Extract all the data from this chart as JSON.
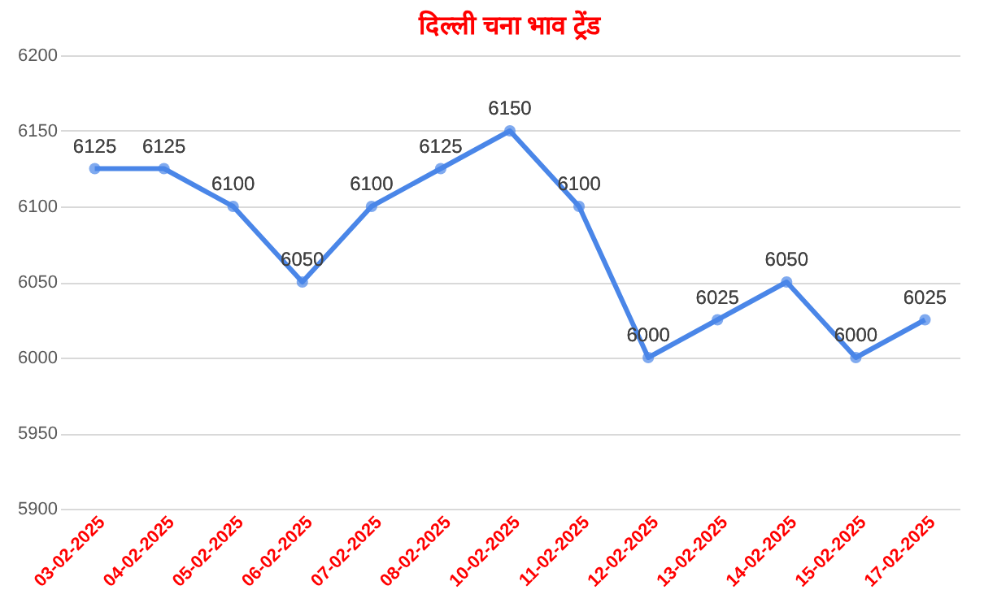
{
  "chart_data": {
    "type": "line",
    "title": "दिल्ली  चना भाव ट्रेंड",
    "categories": [
      "03-02-2025",
      "04-02-2025",
      "05-02-2025",
      "06-02-2025",
      "07-02-2025",
      "08-02-2025",
      "10-02-2025",
      "11-02-2025",
      "12-02-2025",
      "13-02-2025",
      "14-02-2025",
      "15-02-2025",
      "17-02-2025"
    ],
    "series": [
      {
        "color": "#4a86e8",
        "values": [
          6125,
          6125,
          6100,
          6050,
          6100,
          6125,
          6150,
          6100,
          6000,
          6025,
          6050,
          6000,
          6025
        ]
      }
    ],
    "ylim": [
      5900,
      6200
    ],
    "yticks": [
      5900,
      5950,
      6000,
      6050,
      6100,
      6150,
      6200
    ],
    "grid": "y",
    "marker": "circle",
    "line_style": "solid",
    "data_labels": true,
    "legend": false
  }
}
